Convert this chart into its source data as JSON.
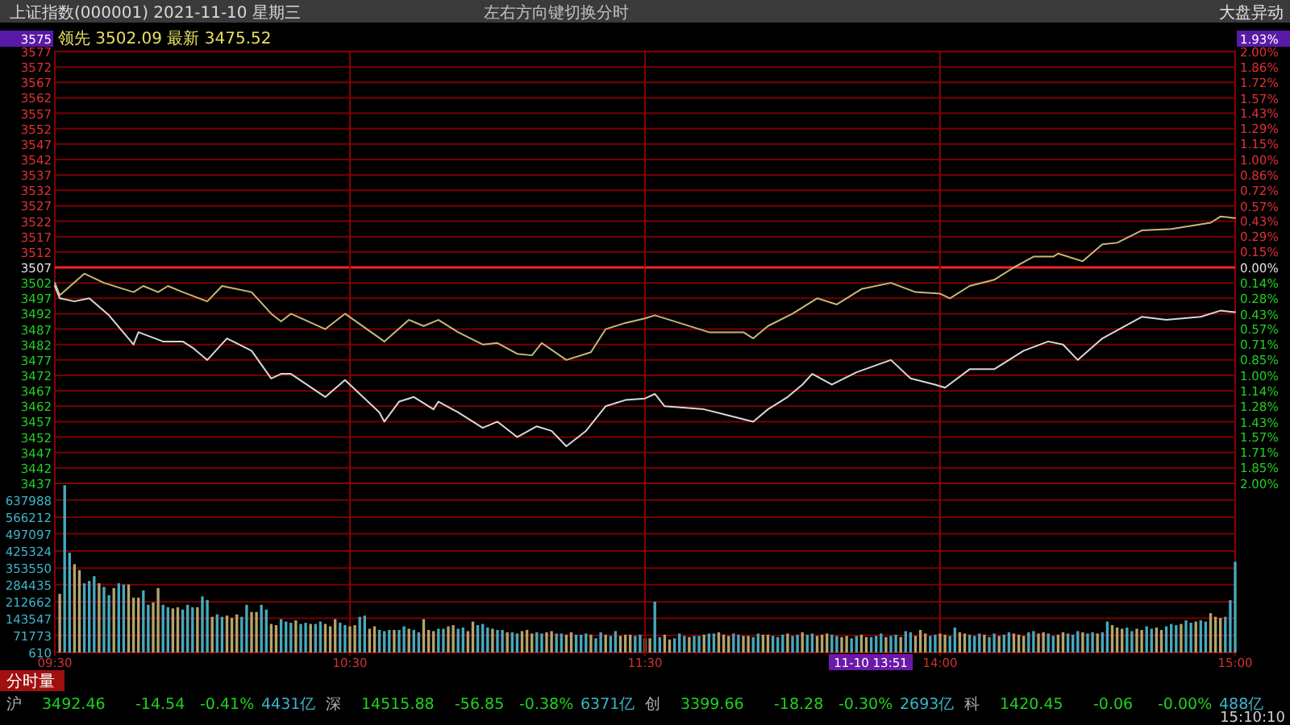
{
  "chart_data": [
    {
      "type": "line",
      "title": "上证指数(000001) 2021-11-10 星期三",
      "subtitle": "领先 3502.09 最新 3475.52",
      "series": [
        {
          "color": "#c8b878",
          "x": [
            "2021-11-10T09:30",
            "2021-11-10T09:31",
            "2021-11-10T09:36",
            "2021-11-10T09:40",
            "2021-11-10T09:46",
            "2021-11-10T09:48",
            "2021-11-10T09:51",
            "2021-11-10T09:53",
            "2021-11-10T09:56",
            "2021-11-10T10:01",
            "2021-11-10T10:04",
            "2021-11-10T10:10",
            "2021-11-10T10:14",
            "2021-11-10T10:16",
            "2021-11-10T10:18",
            "2021-11-10T10:25",
            "2021-11-10T10:29",
            "2021-11-10T10:37",
            "2021-11-10T10:42",
            "2021-11-10T10:45",
            "2021-11-10T10:48",
            "2021-11-10T10:52",
            "2021-11-10T10:57",
            "2021-11-10T11:00",
            "2021-11-10T11:04",
            "2021-11-10T11:07",
            "2021-11-10T11:09",
            "2021-11-10T11:14",
            "2021-11-10T11:19",
            "2021-11-10T11:22",
            "2021-11-10T11:26",
            "2021-11-10T11:30"
          ],
          "values": [
            3502,
            3498,
            3505,
            3502,
            3499,
            3501,
            3499,
            3501,
            3499,
            3496,
            3501,
            3499,
            3492,
            3489.5,
            3492,
            3487,
            3492,
            3483,
            3490,
            3488,
            3490,
            3486,
            3482,
            3482.5,
            3479,
            3478.5,
            3482.5,
            3477,
            3479.5,
            3487,
            3489,
            3490.5
          ]
        },
        {
          "color": "#d8d8d8",
          "x": [
            "2021-11-10T09:30",
            "2021-11-10T09:31",
            "2021-11-10T09:34",
            "2021-11-10T09:37",
            "2021-11-10T09:41",
            "2021-11-10T09:46",
            "2021-11-10T09:47",
            "2021-11-10T09:52",
            "2021-11-10T09:56",
            "2021-11-10T09:58",
            "2021-11-10T10:01",
            "2021-11-10T10:05",
            "2021-11-10T10:10",
            "2021-11-10T10:14",
            "2021-11-10T10:16",
            "2021-11-10T10:18",
            "2021-11-10T10:25",
            "2021-11-10T10:29",
            "2021-11-10T10:36",
            "2021-11-10T10:37",
            "2021-11-10T10:40",
            "2021-11-10T10:43",
            "2021-11-10T10:47",
            "2021-11-10T10:48",
            "2021-11-10T10:52",
            "2021-11-10T10:57",
            "2021-11-10T11:00",
            "2021-11-10T11:04",
            "2021-11-10T11:08",
            "2021-11-10T11:11",
            "2021-11-10T11:14",
            "2021-11-10T11:18",
            "2021-11-10T11:22",
            "2021-11-10T11:26",
            "2021-11-10T11:30"
          ],
          "values": [
            3501,
            3497,
            3496,
            3497,
            3491.5,
            3482,
            3486,
            3483,
            3483,
            3481,
            3477,
            3484,
            3480,
            3471,
            3472.5,
            3472.5,
            3465,
            3470.5,
            3460,
            3457,
            3463.5,
            3465,
            3461,
            3463.5,
            3460,
            3455,
            3457,
            3452,
            3455.5,
            3454,
            3449,
            3454,
            3462,
            3464,
            3464.5
          ]
        }
      ],
      "xlim": [
        "2021-11-10T09:30",
        "2021-11-10T11:30"
      ],
      "ylim": [
        3437,
        3577
      ],
      "yticks": [
        3437,
        3442,
        3447,
        3452,
        3457,
        3462,
        3467,
        3472,
        3477,
        3482,
        3487,
        3492,
        3497,
        3502,
        3507,
        3512,
        3517,
        3522,
        3527,
        3532,
        3537,
        3542,
        3547,
        3552,
        3557,
        3562,
        3567,
        3572,
        3577
      ],
      "ref_lines": [
        {
          "axis": "y",
          "value": 3507,
          "color": "#ff2020"
        },
        {
          "axis": "x",
          "value": "2021-11-10T10:30",
          "color": "#8a0000"
        }
      ],
      "grid": "y",
      "tick_labels": "y",
      "annotations": [
        "左右方向键切换分时",
        "大盘异动",
        "3575"
      ]
    },
    {
      "type": "line",
      "series": [
        {
          "color": "#c8b878",
          "x": [
            "2021-11-10T13:00",
            "2021-11-10T13:02",
            "2021-11-10T13:07",
            "2021-11-10T13:13",
            "2021-11-10T13:20",
            "2021-11-10T13:22",
            "2021-11-10T13:25",
            "2021-11-10T13:30",
            "2021-11-10T13:35",
            "2021-11-10T13:39",
            "2021-11-10T13:44",
            "2021-11-10T13:50",
            "2021-11-10T13:55",
            "2021-11-10T14:00",
            "2021-11-10T14:02",
            "2021-11-10T14:06",
            "2021-11-10T14:11",
            "2021-11-10T14:15",
            "2021-11-10T14:19",
            "2021-11-10T14:23",
            "2021-11-10T14:24",
            "2021-11-10T14:29",
            "2021-11-10T14:33",
            "2021-11-10T14:36",
            "2021-11-10T14:41",
            "2021-11-10T14:47",
            "2021-11-10T14:55",
            "2021-11-10T14:57",
            "2021-11-10T15:00"
          ],
          "values": [
            3490.5,
            3491.5,
            3489,
            3486,
            3486,
            3484,
            3488,
            3492,
            3497,
            3495,
            3500,
            3502,
            3499,
            3498.5,
            3497,
            3501,
            3503,
            3507,
            3510.5,
            3510.5,
            3511.5,
            3509,
            3514.5,
            3515,
            3519,
            3519.5,
            3521.5,
            3523.5,
            3523
          ]
        },
        {
          "color": "#d8d8d8",
          "x": [
            "2021-11-10T13:00",
            "2021-11-10T13:02",
            "2021-11-10T13:04",
            "2021-11-10T13:12",
            "2021-11-10T13:17",
            "2021-11-10T13:22",
            "2021-11-10T13:25",
            "2021-11-10T13:29",
            "2021-11-10T13:32",
            "2021-11-10T13:34",
            "2021-11-10T13:38",
            "2021-11-10T13:43",
            "2021-11-10T13:50",
            "2021-11-10T13:54",
            "2021-11-10T13:59",
            "2021-11-10T14:01",
            "2021-11-10T14:06",
            "2021-11-10T14:11",
            "2021-11-10T14:17",
            "2021-11-10T14:22",
            "2021-11-10T14:25",
            "2021-11-10T14:28",
            "2021-11-10T14:33",
            "2021-11-10T14:41",
            "2021-11-10T14:46",
            "2021-11-10T14:53",
            "2021-11-10T14:57",
            "2021-11-10T15:00"
          ],
          "values": [
            3464.5,
            3466,
            3462,
            3461,
            3459,
            3457,
            3461,
            3465,
            3469,
            3472.5,
            3469,
            3473,
            3477,
            3471,
            3469,
            3468,
            3474,
            3474,
            3480,
            3483,
            3482,
            3477,
            3484,
            3491,
            3490,
            3491,
            3493,
            3492.5
          ]
        }
      ],
      "xlim": [
        "2021-11-10T13:00",
        "2021-11-10T15:00"
      ],
      "ylim": [
        3437,
        3577
      ],
      "yticks": [
        {
          "value": 3437,
          "label": null
        },
        {
          "value": 3442,
          "label": null
        },
        {
          "value": 3447,
          "label": null
        },
        {
          "value": 3452,
          "label": null
        },
        {
          "value": 3457,
          "label": null
        },
        {
          "value": 3462,
          "label": null
        },
        {
          "value": 3467,
          "label": null
        },
        {
          "value": 3472,
          "label": null
        },
        {
          "value": 3477,
          "label": null
        },
        {
          "value": 3482,
          "label": null
        },
        {
          "value": 3487,
          "label": null
        },
        {
          "value": 3492,
          "label": null
        },
        {
          "value": 3497,
          "label": null
        },
        {
          "value": 3502,
          "label": null
        },
        {
          "value": 3507,
          "label": null
        },
        {
          "value": 3512,
          "label": null
        },
        {
          "value": 3517,
          "label": null
        },
        {
          "value": 3522,
          "label": null
        },
        {
          "value": 3527,
          "label": null
        },
        {
          "value": 3532,
          "label": null
        },
        {
          "value": 3537,
          "label": null
        },
        {
          "value": 3542,
          "label": null
        },
        {
          "value": 3547,
          "label": null
        },
        {
          "value": 3552,
          "label": null
        },
        {
          "value": 3557,
          "label": null
        },
        {
          "value": 3562,
          "label": null
        },
        {
          "value": 3567,
          "label": null
        },
        {
          "value": 3572,
          "label": null
        },
        {
          "value": 3577,
          "label": null
        }
      ],
      "y2lim": [
        -2,
        2
      ],
      "y2ticks": [
        {
          "value": -2,
          "label": "2.00%"
        },
        {
          "value": -1.85,
          "label": "1.85%"
        },
        {
          "value": -1.71,
          "label": "1.71%"
        },
        {
          "value": -1.57,
          "label": "1.57%"
        },
        {
          "value": -1.43,
          "label": "1.43%"
        },
        {
          "value": -1.28,
          "label": "1.28%"
        },
        {
          "value": -1.14,
          "label": "1.14%"
        },
        {
          "value": -1,
          "label": "1.00%"
        },
        {
          "value": -0.85,
          "label": "0.85%"
        },
        {
          "value": -0.71,
          "label": "0.71%"
        },
        {
          "value": -0.57,
          "label": "0.57%"
        },
        {
          "value": -0.43,
          "label": "0.43%"
        },
        {
          "value": -0.28,
          "label": "0.28%"
        },
        {
          "value": -0.14,
          "label": "0.14%"
        },
        {
          "value": 0,
          "label": "0.00%"
        },
        {
          "value": 0.15,
          "label": "0.15%"
        },
        {
          "value": 0.29,
          "label": "0.29%"
        },
        {
          "value": 0.43,
          "label": "0.43%"
        },
        {
          "value": 0.57,
          "label": "0.57%"
        },
        {
          "value": 0.72,
          "label": "0.72%"
        },
        {
          "value": 0.86,
          "label": "0.86%"
        },
        {
          "value": 1,
          "label": "1.00%"
        },
        {
          "value": 1.15,
          "label": "1.15%"
        },
        {
          "value": 1.29,
          "label": "1.29%"
        },
        {
          "value": 1.43,
          "label": "1.43%"
        },
        {
          "value": 1.57,
          "label": "1.57%"
        },
        {
          "value": 1.72,
          "label": "1.72%"
        },
        {
          "value": 1.86,
          "label": "1.86%"
        },
        {
          "value": 2,
          "label": "2.00%"
        }
      ],
      "ref_lines": [
        {
          "axis": "y",
          "value": 3507,
          "color": "#ff2020"
        },
        {
          "axis": "x",
          "value": "2021-11-10T14:00",
          "color": "#8a0000"
        }
      ],
      "grid": "y",
      "tick_labels": false,
      "annotations": [
        "1.93%"
      ]
    },
    {
      "type": "bar",
      "x": [
        "2021-11-10T09:31",
        "2021-11-10T09:32",
        "2021-11-10T09:33",
        "2021-11-10T09:34",
        "2021-11-10T09:35",
        "2021-11-10T09:36",
        "2021-11-10T09:37",
        "2021-11-10T09:38",
        "2021-11-10T09:39",
        "2021-11-10T09:40",
        "2021-11-10T09:41",
        "2021-11-10T09:42",
        "2021-11-10T09:43",
        "2021-11-10T09:44",
        "2021-11-10T09:45",
        "2021-11-10T09:46",
        "2021-11-10T09:47",
        "2021-11-10T09:48",
        "2021-11-10T09:49",
        "2021-11-10T09:50",
        "2021-11-10T09:51",
        "2021-11-10T09:52",
        "2021-11-10T09:53",
        "2021-11-10T09:54",
        "2021-11-10T09:55",
        "2021-11-10T09:56",
        "2021-11-10T09:57",
        "2021-11-10T09:58",
        "2021-11-10T09:59",
        "2021-11-10T10:00",
        "2021-11-10T10:01",
        "2021-11-10T10:02",
        "2021-11-10T10:03",
        "2021-11-10T10:04",
        "2021-11-10T10:05",
        "2021-11-10T10:06",
        "2021-11-10T10:07",
        "2021-11-10T10:08",
        "2021-11-10T10:09",
        "2021-11-10T10:10",
        "2021-11-10T10:11",
        "2021-11-10T10:12",
        "2021-11-10T10:13",
        "2021-11-10T10:14",
        "2021-11-10T10:15",
        "2021-11-10T10:16",
        "2021-11-10T10:17",
        "2021-11-10T10:18",
        "2021-11-10T10:19",
        "2021-11-10T10:20",
        "2021-11-10T10:21",
        "2021-11-10T10:22",
        "2021-11-10T10:23",
        "2021-11-10T10:24",
        "2021-11-10T10:25",
        "2021-11-10T10:26",
        "2021-11-10T10:27",
        "2021-11-10T10:28",
        "2021-11-10T10:29",
        "2021-11-10T10:30",
        "2021-11-10T10:31",
        "2021-11-10T10:32",
        "2021-11-10T10:33",
        "2021-11-10T10:34",
        "2021-11-10T10:35",
        "2021-11-10T10:36",
        "2021-11-10T10:37",
        "2021-11-10T10:38",
        "2021-11-10T10:39",
        "2021-11-10T10:40",
        "2021-11-10T10:41",
        "2021-11-10T10:42",
        "2021-11-10T10:43",
        "2021-11-10T10:44",
        "2021-11-10T10:45",
        "2021-11-10T10:46",
        "2021-11-10T10:47",
        "2021-11-10T10:48",
        "2021-11-10T10:49",
        "2021-11-10T10:50",
        "2021-11-10T10:51",
        "2021-11-10T10:52",
        "2021-11-10T10:53",
        "2021-11-10T10:54",
        "2021-11-10T10:55",
        "2021-11-10T10:56",
        "2021-11-10T10:57",
        "2021-11-10T10:58",
        "2021-11-10T10:59",
        "2021-11-10T11:00",
        "2021-11-10T11:01",
        "2021-11-10T11:02",
        "2021-11-10T11:03",
        "2021-11-10T11:04",
        "2021-11-10T11:05",
        "2021-11-10T11:06",
        "2021-11-10T11:07",
        "2021-11-10T11:08",
        "2021-11-10T11:09",
        "2021-11-10T11:10",
        "2021-11-10T11:11",
        "2021-11-10T11:12",
        "2021-11-10T11:13",
        "2021-11-10T11:14",
        "2021-11-10T11:15",
        "2021-11-10T11:16",
        "2021-11-10T11:17",
        "2021-11-10T11:18",
        "2021-11-10T11:19",
        "2021-11-10T11:20",
        "2021-11-10T11:21",
        "2021-11-10T11:22",
        "2021-11-10T11:23",
        "2021-11-10T11:24",
        "2021-11-10T11:25",
        "2021-11-10T11:26",
        "2021-11-10T11:27",
        "2021-11-10T11:28",
        "2021-11-10T11:29",
        "2021-11-10T11:30"
      ],
      "values": [
        246000,
        700000,
        418000,
        370000,
        345000,
        290000,
        300000,
        320000,
        290000,
        275000,
        240000,
        270000,
        290000,
        285000,
        285000,
        230000,
        230000,
        260000,
        200000,
        210000,
        270000,
        200000,
        190000,
        185000,
        190000,
        180000,
        200000,
        190000,
        190000,
        235000,
        220000,
        150000,
        160000,
        150000,
        155000,
        145000,
        160000,
        150000,
        200000,
        170000,
        170000,
        200000,
        180000,
        120000,
        115000,
        140000,
        130000,
        125000,
        135000,
        120000,
        125000,
        120000,
        120000,
        130000,
        120000,
        110000,
        140000,
        125000,
        115000,
        110000,
        115000,
        150000,
        155000,
        100000,
        110000,
        95000,
        90000,
        95000,
        95000,
        95000,
        110000,
        100000,
        95000,
        85000,
        140000,
        95000,
        90000,
        100000,
        100000,
        110000,
        115000,
        100000,
        105000,
        90000,
        130000,
        115000,
        120000,
        105000,
        100000,
        95000,
        95000,
        85000,
        85000,
        80000,
        90000,
        95000,
        80000,
        85000,
        80000,
        85000,
        90000,
        80000,
        80000,
        75000,
        85000,
        75000,
        75000,
        80000,
        75000,
        60000,
        85000,
        75000,
        70000,
        90000,
        70000,
        75000,
        75000,
        70000,
        75000,
        60000
      ],
      "colors": [
        "#b4a46c",
        "#48a8bc",
        "#48a8bc",
        "#b4a46c",
        "#b4a46c",
        "#48a8bc",
        "#48a8bc",
        "#48a8bc",
        "#b4a46c",
        "#48a8bc",
        "#48a8bc",
        "#b4a46c",
        "#48a8bc",
        "#48a8bc",
        "#b4a46c",
        "#b4a46c",
        "#b4a46c",
        "#48a8bc",
        "#48a8bc",
        "#b4a46c",
        "#b4a46c",
        "#48a8bc",
        "#48a8bc",
        "#b4a46c",
        "#b4a46c",
        "#48a8bc",
        "#48a8bc",
        "#48a8bc",
        "#b4a46c",
        "#48a8bc",
        "#48a8bc",
        "#b4a46c",
        "#48a8bc",
        "#48a8bc",
        "#b4a46c",
        "#b4a46c",
        "#b4a46c",
        "#48a8bc",
        "#48a8bc",
        "#b4a46c",
        "#b4a46c",
        "#48a8bc",
        "#48a8bc",
        "#b4a46c",
        "#b4a46c",
        "#48a8bc",
        "#48a8bc",
        "#48a8bc",
        "#b4a46c",
        "#48a8bc",
        "#48a8bc",
        "#b4a46c",
        "#48a8bc",
        "#48a8bc",
        "#b4a46c",
        "#b4a46c",
        "#b4a46c",
        "#48a8bc",
        "#48a8bc",
        "#b4a46c",
        "#b4a46c",
        "#48a8bc",
        "#48a8bc",
        "#b4a46c",
        "#b4a46c",
        "#48a8bc",
        "#48a8bc",
        "#48a8bc",
        "#b4a46c",
        "#48a8bc",
        "#48a8bc",
        "#b4a46c",
        "#48a8bc",
        "#48a8bc",
        "#b4a46c",
        "#b4a46c",
        "#b4a46c",
        "#48a8bc",
        "#48a8bc",
        "#b4a46c",
        "#b4a46c",
        "#48a8bc",
        "#48a8bc",
        "#b4a46c",
        "#b4a46c",
        "#48a8bc",
        "#48a8bc",
        "#48a8bc",
        "#b4a46c",
        "#48a8bc",
        "#48a8bc",
        "#b4a46c",
        "#48a8bc",
        "#48a8bc",
        "#b4a46c",
        "#b4a46c",
        "#b4a46c",
        "#48a8bc",
        "#48a8bc",
        "#b4a46c",
        "#b4a46c",
        "#48a8bc",
        "#48a8bc",
        "#b4a46c",
        "#b4a46c",
        "#48a8bc",
        "#48a8bc",
        "#48a8bc",
        "#b4a46c",
        "#48a8bc",
        "#48a8bc",
        "#b4a46c",
        "#48a8bc",
        "#48a8bc",
        "#b4a46c",
        "#b4a46c",
        "#b4a46c",
        "#48a8bc",
        "#48a8bc",
        "#b4a46c"
      ],
      "xlim": [
        "2021-11-10T09:30",
        "2021-11-10T11:30"
      ],
      "xticks": [
        {
          "value": "2021-11-10T09:30",
          "label": "09:30"
        },
        {
          "value": "2021-11-10T10:30",
          "label": "10:30"
        },
        {
          "value": "2021-11-10T11:30",
          "label": "11:30"
        }
      ],
      "ylim": [
        610,
        708000
      ],
      "yticks": [
        610,
        71773,
        143547,
        212662,
        284435,
        353550,
        425324,
        497097,
        566212,
        637988
      ],
      "ref_lines": [
        {
          "axis": "x",
          "value": "2021-11-10T10:30",
          "color": "#8a0000"
        }
      ],
      "grid": "y"
    },
    {
      "type": "bar",
      "x": [
        "2021-11-10T13:01",
        "2021-11-10T13:02",
        "2021-11-10T13:03",
        "2021-11-10T13:04",
        "2021-11-10T13:05",
        "2021-11-10T13:06",
        "2021-11-10T13:07",
        "2021-11-10T13:08",
        "2021-11-10T13:09",
        "2021-11-10T13:10",
        "2021-11-10T13:11",
        "2021-11-10T13:12",
        "2021-11-10T13:13",
        "2021-11-10T13:14",
        "2021-11-10T13:15",
        "2021-11-10T13:16",
        "2021-11-10T13:17",
        "2021-11-10T13:18",
        "2021-11-10T13:19",
        "2021-11-10T13:20",
        "2021-11-10T13:21",
        "2021-11-10T13:22",
        "2021-11-10T13:23",
        "2021-11-10T13:24",
        "2021-11-10T13:25",
        "2021-11-10T13:26",
        "2021-11-10T13:27",
        "2021-11-10T13:28",
        "2021-11-10T13:29",
        "2021-11-10T13:30",
        "2021-11-10T13:31",
        "2021-11-10T13:32",
        "2021-11-10T13:33",
        "2021-11-10T13:34",
        "2021-11-10T13:35",
        "2021-11-10T13:36",
        "2021-11-10T13:37",
        "2021-11-10T13:38",
        "2021-11-10T13:39",
        "2021-11-10T13:40",
        "2021-11-10T13:41",
        "2021-11-10T13:42",
        "2021-11-10T13:43",
        "2021-11-10T13:44",
        "2021-11-10T13:45",
        "2021-11-10T13:46",
        "2021-11-10T13:47",
        "2021-11-10T13:48",
        "2021-11-10T13:49",
        "2021-11-10T13:50",
        "2021-11-10T13:51",
        "2021-11-10T13:52",
        "2021-11-10T13:53",
        "2021-11-10T13:54",
        "2021-11-10T13:55",
        "2021-11-10T13:56",
        "2021-11-10T13:57",
        "2021-11-10T13:58",
        "2021-11-10T13:59",
        "2021-11-10T14:00",
        "2021-11-10T14:01",
        "2021-11-10T14:02",
        "2021-11-10T14:03",
        "2021-11-10T14:04",
        "2021-11-10T14:05",
        "2021-11-10T14:06",
        "2021-11-10T14:07",
        "2021-11-10T14:08",
        "2021-11-10T14:09",
        "2021-11-10T14:10",
        "2021-11-10T14:11",
        "2021-11-10T14:12",
        "2021-11-10T14:13",
        "2021-11-10T14:14",
        "2021-11-10T14:15",
        "2021-11-10T14:16",
        "2021-11-10T14:17",
        "2021-11-10T14:18",
        "2021-11-10T14:19",
        "2021-11-10T14:20",
        "2021-11-10T14:21",
        "2021-11-10T14:22",
        "2021-11-10T14:23",
        "2021-11-10T14:24",
        "2021-11-10T14:25",
        "2021-11-10T14:26",
        "2021-11-10T14:27",
        "2021-11-10T14:28",
        "2021-11-10T14:29",
        "2021-11-10T14:30",
        "2021-11-10T14:31",
        "2021-11-10T14:32",
        "2021-11-10T14:33",
        "2021-11-10T14:34",
        "2021-11-10T14:35",
        "2021-11-10T14:36",
        "2021-11-10T14:37",
        "2021-11-10T14:38",
        "2021-11-10T14:39",
        "2021-11-10T14:40",
        "2021-11-10T14:41",
        "2021-11-10T14:42",
        "2021-11-10T14:43",
        "2021-11-10T14:44",
        "2021-11-10T14:45",
        "2021-11-10T14:46",
        "2021-11-10T14:47",
        "2021-11-10T14:48",
        "2021-11-10T14:49",
        "2021-11-10T14:50",
        "2021-11-10T14:51",
        "2021-11-10T14:52",
        "2021-11-10T14:53",
        "2021-11-10T14:54",
        "2021-11-10T14:55",
        "2021-11-10T14:56",
        "2021-11-10T14:57",
        "2021-11-10T14:58",
        "2021-11-10T14:59",
        "2021-11-10T15:00"
      ],
      "values": [
        60000,
        213000,
        65000,
        75000,
        55000,
        60000,
        80000,
        70000,
        65000,
        70000,
        70000,
        75000,
        80000,
        80000,
        85000,
        75000,
        70000,
        80000,
        75000,
        70000,
        70000,
        65000,
        80000,
        75000,
        75000,
        70000,
        65000,
        75000,
        80000,
        70000,
        75000,
        85000,
        75000,
        80000,
        70000,
        75000,
        80000,
        75000,
        70000,
        65000,
        70000,
        60000,
        70000,
        75000,
        65000,
        65000,
        70000,
        80000,
        65000,
        70000,
        75000,
        65000,
        90000,
        85000,
        70000,
        95000,
        80000,
        70000,
        75000,
        80000,
        75000,
        70000,
        105000,
        85000,
        80000,
        75000,
        70000,
        80000,
        75000,
        65000,
        80000,
        70000,
        75000,
        85000,
        80000,
        75000,
        70000,
        85000,
        90000,
        80000,
        85000,
        80000,
        70000,
        75000,
        85000,
        80000,
        75000,
        90000,
        85000,
        80000,
        85000,
        80000,
        85000,
        130000,
        115000,
        105000,
        100000,
        105000,
        90000,
        100000,
        95000,
        110000,
        100000,
        105000,
        95000,
        110000,
        120000,
        115000,
        120000,
        135000,
        125000,
        130000,
        135000,
        130000,
        165000,
        150000,
        145000,
        150000,
        220000,
        380000
      ],
      "colors": [
        "#b4a46c",
        "#48a8bc",
        "#48a8bc",
        "#b4a46c",
        "#b4a46c",
        "#48a8bc",
        "#48a8bc",
        "#48a8bc",
        "#b4a46c",
        "#48a8bc",
        "#48a8bc",
        "#b4a46c",
        "#48a8bc",
        "#48a8bc",
        "#b4a46c",
        "#b4a46c",
        "#b4a46c",
        "#48a8bc",
        "#48a8bc",
        "#b4a46c",
        "#b4a46c",
        "#48a8bc",
        "#48a8bc",
        "#b4a46c",
        "#b4a46c",
        "#48a8bc",
        "#48a8bc",
        "#48a8bc",
        "#b4a46c",
        "#48a8bc",
        "#48a8bc",
        "#b4a46c",
        "#48a8bc",
        "#48a8bc",
        "#b4a46c",
        "#b4a46c",
        "#b4a46c",
        "#48a8bc",
        "#48a8bc",
        "#b4a46c",
        "#b4a46c",
        "#48a8bc",
        "#48a8bc",
        "#b4a46c",
        "#b4a46c",
        "#48a8bc",
        "#48a8bc",
        "#48a8bc",
        "#b4a46c",
        "#48a8bc",
        "#48a8bc",
        "#b4a46c",
        "#48a8bc",
        "#48a8bc",
        "#b4a46c",
        "#b4a46c",
        "#b4a46c",
        "#48a8bc",
        "#48a8bc",
        "#b4a46c",
        "#b4a46c",
        "#48a8bc",
        "#48a8bc",
        "#b4a46c",
        "#b4a46c",
        "#48a8bc",
        "#48a8bc",
        "#48a8bc",
        "#b4a46c",
        "#48a8bc",
        "#48a8bc",
        "#b4a46c",
        "#48a8bc",
        "#48a8bc",
        "#b4a46c",
        "#b4a46c",
        "#b4a46c",
        "#48a8bc",
        "#48a8bc",
        "#b4a46c",
        "#b4a46c",
        "#48a8bc",
        "#48a8bc",
        "#b4a46c",
        "#b4a46c",
        "#48a8bc",
        "#48a8bc",
        "#48a8bc",
        "#b4a46c",
        "#48a8bc",
        "#48a8bc",
        "#b4a46c",
        "#48a8bc",
        "#48a8bc",
        "#b4a46c",
        "#b4a46c",
        "#b4a46c",
        "#48a8bc",
        "#48a8bc",
        "#b4a46c",
        "#b4a46c",
        "#48a8bc",
        "#48a8bc",
        "#b4a46c",
        "#b4a46c",
        "#48a8bc",
        "#48a8bc",
        "#48a8bc",
        "#b4a46c",
        "#48a8bc",
        "#48a8bc",
        "#b4a46c",
        "#48a8bc",
        "#48a8bc",
        "#b4a46c",
        "#b4a46c",
        "#b4a46c",
        "#48a8bc",
        "#48a8bc",
        "#48a8bc"
      ],
      "xlim": [
        "2021-11-10T13:00",
        "2021-11-10T15:00"
      ],
      "xticks": [
        {
          "value": "2021-11-10T13:00",
          "label": null
        },
        {
          "value": "2021-11-10T14:00",
          "label": "14:00"
        },
        {
          "value": "2021-11-10T15:00",
          "label": "15:00"
        }
      ],
      "ylim": [
        610,
        708000
      ],
      "yticks": [
        {
          "value": 610,
          "label": null
        },
        {
          "value": 71773,
          "label": null
        },
        {
          "value": 143547,
          "label": null
        },
        {
          "value": 212662,
          "label": null
        },
        {
          "value": 284435,
          "label": null
        },
        {
          "value": 353550,
          "label": null
        },
        {
          "value": 425324,
          "label": null
        },
        {
          "value": 497097,
          "label": null
        },
        {
          "value": 566212,
          "label": null
        },
        {
          "value": 637988,
          "label": null
        }
      ],
      "ref_lines": [
        {
          "axis": "x",
          "value": "2021-11-10T14:00",
          "color": "#8a0000"
        }
      ],
      "grid": "y",
      "tick_labels": "x",
      "annotations": [
        "分时量",
        "沪",
        "3492.46",
        "-14.54",
        "-0.41%",
        "4431亿",
        "深",
        "14515.88",
        "-56.85",
        "-0.38%",
        "6371亿",
        "创",
        "3399.66",
        "-18.28",
        "-0.30%",
        "2693亿",
        "科",
        "1420.45",
        "-0.06",
        "-0.00%",
        "488亿",
        "15:10:10",
        "11-10 13:51"
      ]
    }
  ]
}
